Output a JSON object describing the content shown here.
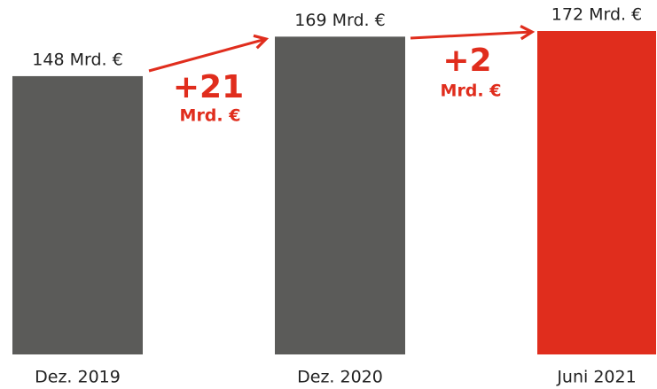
{
  "chart_data": {
    "type": "bar",
    "categories": [
      "Dez. 2019",
      "Dez. 2020",
      "Juni 2021"
    ],
    "values": [
      148,
      169,
      172
    ],
    "value_labels": [
      "148 Mrd. €",
      "169 Mrd. €",
      "172 Mrd. €"
    ],
    "colors": [
      "#5b5b59",
      "#5b5b59",
      "#e02d1d"
    ],
    "annotations": [
      {
        "text": "+21",
        "subtext": "Mrd. €"
      },
      {
        "text": "+2",
        "subtext": "Mrd. €"
      }
    ]
  }
}
